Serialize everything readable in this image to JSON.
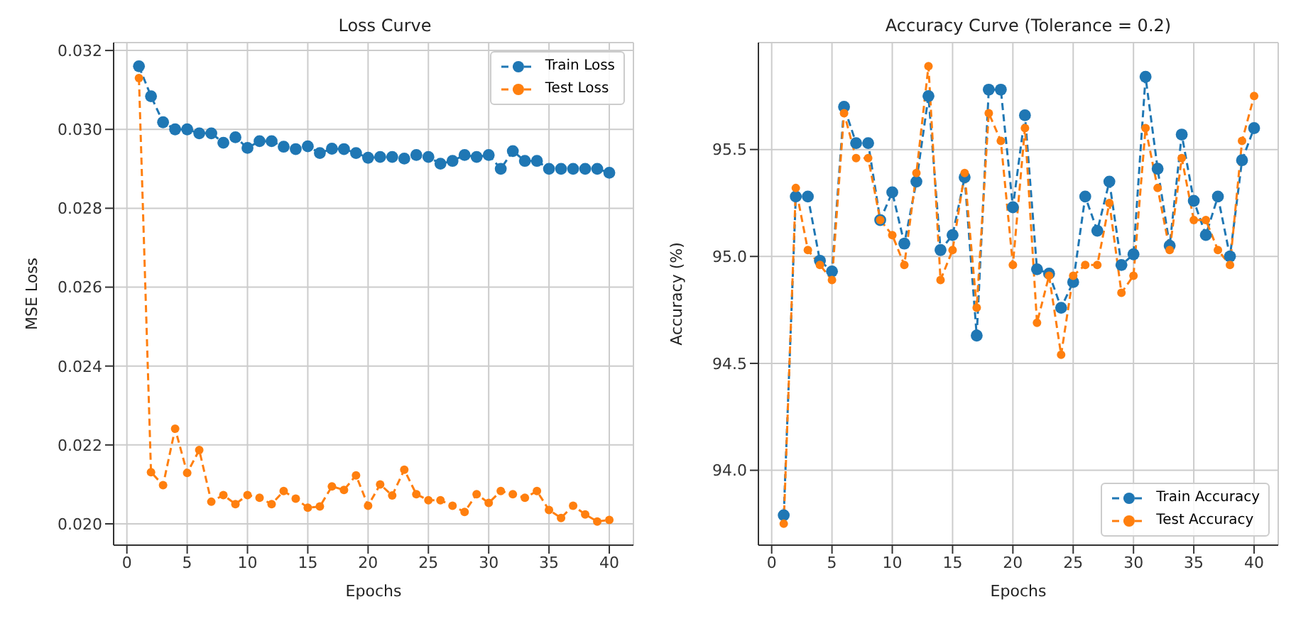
{
  "chart_data": [
    {
      "type": "line",
      "title": "Loss Curve",
      "xlabel": "Epochs",
      "ylabel": "MSE Loss",
      "x": [
        1,
        2,
        3,
        4,
        5,
        6,
        7,
        8,
        9,
        10,
        11,
        12,
        13,
        14,
        15,
        16,
        17,
        18,
        19,
        20,
        21,
        22,
        23,
        24,
        25,
        26,
        27,
        28,
        29,
        30,
        31,
        32,
        33,
        34,
        35,
        36,
        37,
        38,
        39,
        40
      ],
      "series": [
        {
          "name": "Train Loss",
          "color": "#1f77b4",
          "values": [
            0.0316,
            0.03084,
            0.03018,
            0.03,
            0.03,
            0.0299,
            0.0299,
            0.02966,
            0.0298,
            0.02953,
            0.0297,
            0.0297,
            0.02956,
            0.0295,
            0.02957,
            0.0294,
            0.02951,
            0.0295,
            0.0294,
            0.02928,
            0.0293,
            0.0293,
            0.02926,
            0.02935,
            0.0293,
            0.02913,
            0.0292,
            0.02935,
            0.0293,
            0.02935,
            0.029,
            0.02945,
            0.0292,
            0.0292,
            0.029,
            0.029,
            0.029,
            0.029,
            0.029,
            0.0289
          ]
        },
        {
          "name": "Test Loss",
          "color": "#ff7f0e",
          "values": [
            0.0313,
            0.02131,
            0.02098,
            0.02241,
            0.02129,
            0.02187,
            0.02056,
            0.02073,
            0.0205,
            0.02073,
            0.02066,
            0.0205,
            0.02083,
            0.02064,
            0.02041,
            0.02044,
            0.02095,
            0.02086,
            0.02123,
            0.02046,
            0.021,
            0.02072,
            0.02137,
            0.02075,
            0.0206,
            0.0206,
            0.02046,
            0.0203,
            0.02075,
            0.02053,
            0.02083,
            0.02075,
            0.02066,
            0.02083,
            0.02035,
            0.02015,
            0.02046,
            0.02024,
            0.02006,
            0.0201
          ]
        }
      ],
      "xlim": [
        -1.1,
        42
      ],
      "xticks": [
        0,
        5,
        10,
        15,
        20,
        25,
        30,
        35,
        40
      ],
      "ylim": [
        0.01946,
        0.0322
      ],
      "yticks": [
        {
          "value": 0.02,
          "label": "0.020"
        },
        {
          "value": 0.022,
          "label": "0.022"
        },
        {
          "value": 0.024,
          "label": "0.024"
        },
        {
          "value": 0.026,
          "label": "0.026"
        },
        {
          "value": 0.028,
          "label": "0.028"
        },
        {
          "value": 0.03,
          "label": "0.030"
        },
        {
          "value": 0.032,
          "label": "0.032"
        }
      ],
      "grid": true,
      "legend": "top right",
      "marker": "circle",
      "line_style": "dashed"
    },
    {
      "type": "line",
      "title": "Accuracy Curve (Tolerance = 0.2)",
      "xlabel": "Epochs",
      "ylabel": "Accuracy (%)",
      "x": [
        1,
        2,
        3,
        4,
        5,
        6,
        7,
        8,
        9,
        10,
        11,
        12,
        13,
        14,
        15,
        16,
        17,
        18,
        19,
        20,
        21,
        22,
        23,
        24,
        25,
        26,
        27,
        28,
        29,
        30,
        31,
        32,
        33,
        34,
        35,
        36,
        37,
        38,
        39,
        40
      ],
      "series": [
        {
          "name": "Train Accuracy",
          "color": "#1f77b4",
          "values": [
            93.79,
            95.28,
            95.28,
            94.98,
            94.93,
            95.7,
            95.53,
            95.53,
            95.17,
            95.3,
            95.06,
            95.35,
            95.75,
            95.03,
            95.1,
            95.37,
            94.63,
            95.78,
            95.78,
            95.23,
            95.66,
            94.94,
            94.92,
            94.76,
            94.88,
            95.28,
            95.12,
            95.35,
            94.96,
            95.01,
            95.84,
            95.41,
            95.05,
            95.57,
            95.26,
            95.1,
            95.28,
            95.0,
            95.45,
            95.6
          ]
        },
        {
          "name": "Test Accuracy",
          "color": "#ff7f0e",
          "values": [
            93.75,
            95.32,
            95.03,
            94.96,
            94.89,
            95.67,
            95.46,
            95.46,
            95.17,
            95.1,
            94.96,
            95.39,
            95.89,
            94.89,
            95.03,
            95.39,
            94.76,
            95.67,
            95.54,
            94.96,
            95.6,
            94.69,
            94.91,
            94.54,
            94.91,
            94.96,
            94.96,
            95.25,
            94.83,
            94.91,
            95.6,
            95.32,
            95.03,
            95.46,
            95.17,
            95.17,
            95.03,
            94.96,
            95.54,
            95.75
          ]
        }
      ],
      "xlim": [
        -1.1,
        42
      ],
      "xticks": [
        0,
        5,
        10,
        15,
        20,
        25,
        30,
        35,
        40
      ],
      "ylim": [
        93.65,
        96.0
      ],
      "yticks": [
        {
          "value": 94,
          "label": "94.0"
        },
        94.5,
        {
          "value": 95,
          "label": "95.0"
        },
        95.5
      ],
      "grid": true,
      "legend": "bottom right",
      "marker": "circle",
      "line_style": "dashed"
    }
  ]
}
